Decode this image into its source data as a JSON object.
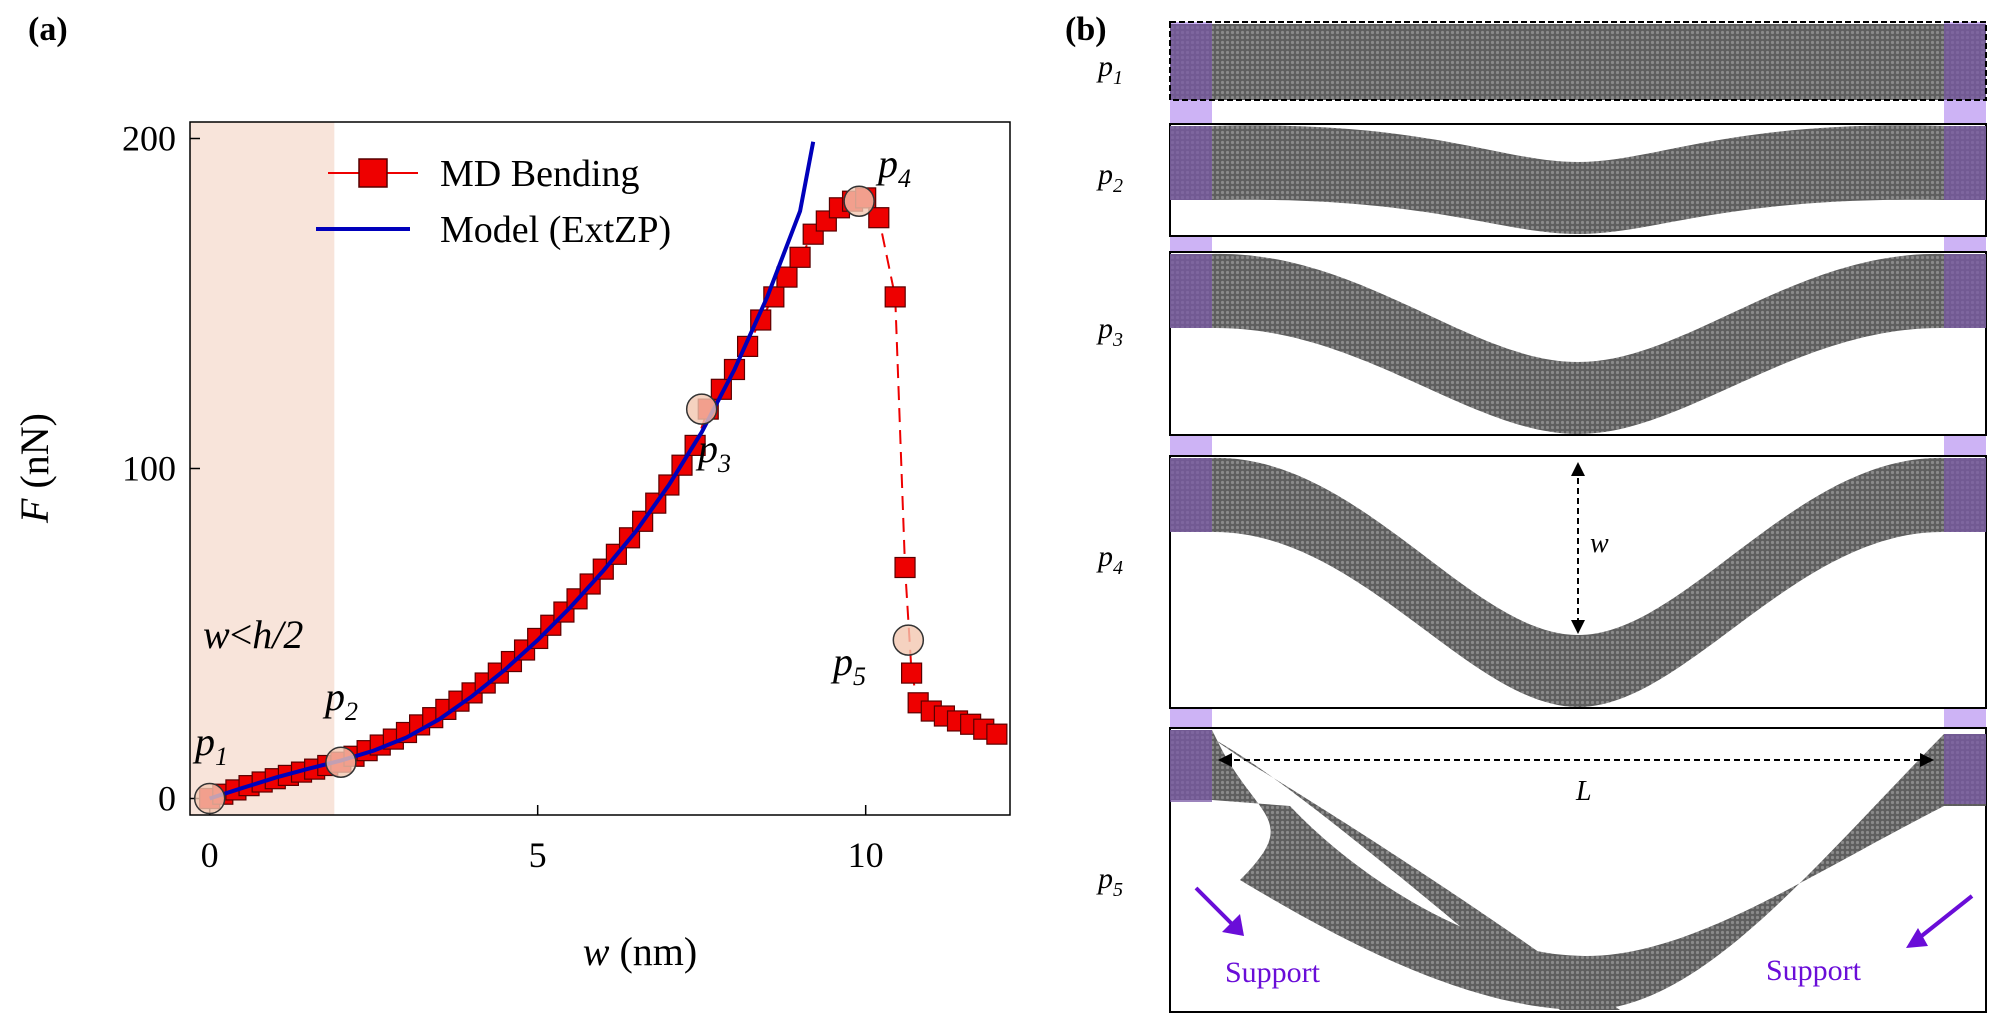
{
  "panels": {
    "a": "(a)",
    "b": "(b)"
  },
  "colors": {
    "md": "#ee0000",
    "model": "#0000bb",
    "shade": "#f8e4da",
    "support": "#cdb3f5",
    "support_text": "#6a0dd8",
    "atoms": "#6a6a6a"
  },
  "chart_data": {
    "type": "line",
    "title": "",
    "xlabel": {
      "var": "w",
      "unit": "(nm)"
    },
    "ylabel": {
      "var": "F",
      "unit": "(nN)"
    },
    "xlim": [
      -0.3,
      12.2
    ],
    "ylim": [
      -5,
      205
    ],
    "xticks": [
      0,
      5,
      10
    ],
    "yticks": [
      0,
      100,
      200
    ],
    "shaded_region": {
      "x": [
        -0.3,
        1.9
      ],
      "label_var": "w",
      "label_op": "<",
      "label_rhs": "h/2"
    },
    "series": [
      {
        "name": "MD Bending",
        "style": "square-markers-dashed",
        "points": [
          [
            0,
            0
          ],
          [
            0.2,
            1.3
          ],
          [
            0.4,
            2.6
          ],
          [
            0.6,
            3.9
          ],
          [
            0.8,
            5
          ],
          [
            1.0,
            6
          ],
          [
            1.2,
            7
          ],
          [
            1.4,
            8
          ],
          [
            1.6,
            8.9
          ],
          [
            1.8,
            10
          ],
          [
            2.0,
            11
          ],
          [
            2.2,
            12.8
          ],
          [
            2.4,
            14.5
          ],
          [
            2.6,
            16.2
          ],
          [
            2.8,
            18
          ],
          [
            3.0,
            20
          ],
          [
            3.2,
            22.3
          ],
          [
            3.4,
            24.5
          ],
          [
            3.6,
            27
          ],
          [
            3.8,
            29.5
          ],
          [
            4.0,
            32
          ],
          [
            4.2,
            35
          ],
          [
            4.4,
            38
          ],
          [
            4.6,
            41.5
          ],
          [
            4.8,
            45
          ],
          [
            5.0,
            48.5
          ],
          [
            5.2,
            52.5
          ],
          [
            5.4,
            56.5
          ],
          [
            5.6,
            60.5
          ],
          [
            5.8,
            65
          ],
          [
            6.0,
            69.5
          ],
          [
            6.2,
            74
          ],
          [
            6.4,
            79
          ],
          [
            6.6,
            84
          ],
          [
            6.8,
            89.5
          ],
          [
            7.0,
            95
          ],
          [
            7.2,
            101
          ],
          [
            7.4,
            107
          ],
          [
            7.6,
            118
          ],
          [
            7.8,
            124
          ],
          [
            8.0,
            130
          ],
          [
            8.2,
            137
          ],
          [
            8.4,
            145
          ],
          [
            8.6,
            152
          ],
          [
            8.8,
            158
          ],
          [
            9.0,
            164
          ],
          [
            9.2,
            171
          ],
          [
            9.4,
            175
          ],
          [
            9.6,
            179
          ],
          [
            9.8,
            181
          ],
          [
            10.0,
            182
          ],
          [
            10.2,
            176
          ],
          [
            10.45,
            152
          ],
          [
            10.6,
            70
          ],
          [
            10.7,
            38
          ],
          [
            10.8,
            29
          ],
          [
            11.0,
            26.5
          ],
          [
            11.2,
            25
          ],
          [
            11.4,
            23.5
          ],
          [
            11.6,
            22.5
          ],
          [
            11.8,
            21
          ],
          [
            12.0,
            19.5
          ]
        ]
      },
      {
        "name": "Model (ExtZP)",
        "style": "solid-line",
        "points": [
          [
            0,
            0
          ],
          [
            0.5,
            3.2
          ],
          [
            1.0,
            6.3
          ],
          [
            1.5,
            9
          ],
          [
            2.0,
            11.5
          ],
          [
            2.5,
            14.5
          ],
          [
            3.0,
            18.5
          ],
          [
            3.5,
            24
          ],
          [
            4.0,
            31
          ],
          [
            4.5,
            39
          ],
          [
            5.0,
            48
          ],
          [
            5.5,
            58
          ],
          [
            6.0,
            69
          ],
          [
            6.5,
            81
          ],
          [
            7.0,
            95
          ],
          [
            7.5,
            111
          ],
          [
            8.0,
            130
          ],
          [
            8.5,
            152
          ],
          [
            9.0,
            178
          ],
          [
            9.2,
            199
          ]
        ]
      }
    ],
    "highlight_points": [
      {
        "label": "p",
        "sub": "1",
        "x": 0,
        "y": 0
      },
      {
        "label": "p",
        "sub": "2",
        "x": 2.0,
        "y": 11
      },
      {
        "label": "p",
        "sub": "3",
        "x": 7.5,
        "y": 118
      },
      {
        "label": "p",
        "sub": "4",
        "x": 9.9,
        "y": 181
      },
      {
        "label": "p",
        "sub": "5",
        "x": 10.65,
        "y": 48
      }
    ]
  },
  "snapshots": {
    "labels": [
      {
        "p": "p",
        "sub": "1"
      },
      {
        "p": "p",
        "sub": "2"
      },
      {
        "p": "p",
        "sub": "3"
      },
      {
        "p": "p",
        "sub": "4"
      },
      {
        "p": "p",
        "sub": "5"
      }
    ],
    "w_label": "w",
    "L_label": "L",
    "support_left": "Support",
    "support_right": "Support"
  }
}
